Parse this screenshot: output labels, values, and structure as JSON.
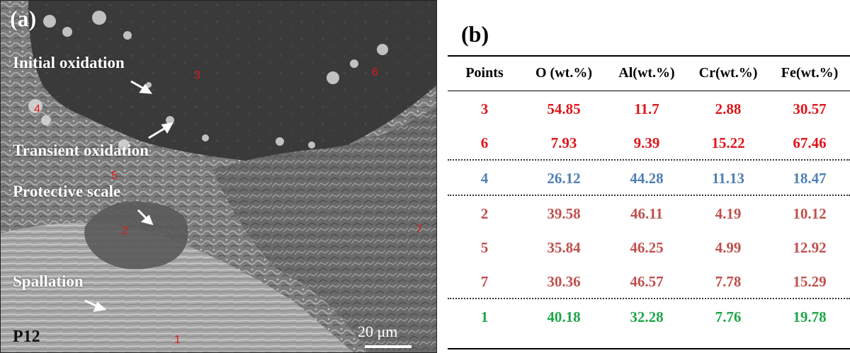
{
  "panel_a": {
    "letter": "(a)",
    "annotations": {
      "initial": "Initial oxidation",
      "transient": "Transient oxidation",
      "protective": "Protective scale",
      "spallation": "Spallation"
    },
    "point_labels": [
      "1",
      "2",
      "3",
      "4",
      "5",
      "6",
      "7"
    ],
    "sample_id": "P12",
    "scale_bar": "20 μm",
    "point_color": "#e01a1a"
  },
  "panel_b": {
    "letter": "(b)",
    "headers": [
      "Points",
      "O (wt.%)",
      "Al(wt.%)",
      "Cr(wt.%)",
      "Fe(wt.%)"
    ],
    "groups": [
      {
        "color": "#e0161c",
        "rows": [
          [
            "3",
            "54.85",
            "11.7",
            "2.88",
            "30.57"
          ],
          [
            "6",
            "7.93",
            "9.39",
            "15.22",
            "67.46"
          ]
        ]
      },
      {
        "color": "#4f7fb5",
        "rows": [
          [
            "4",
            "26.12",
            "44.28",
            "11.13",
            "18.47"
          ]
        ]
      },
      {
        "color": "#c0504d",
        "rows": [
          [
            "2",
            "39.58",
            "46.11",
            "4.19",
            "10.12"
          ],
          [
            "5",
            "35.84",
            "46.25",
            "4.99",
            "12.92"
          ],
          [
            "7",
            "30.36",
            "46.57",
            "7.78",
            "15.29"
          ]
        ]
      },
      {
        "color": "#1fa64a",
        "rows": [
          [
            "1",
            "40.18",
            "32.28",
            "7.76",
            "19.78"
          ]
        ]
      }
    ]
  }
}
